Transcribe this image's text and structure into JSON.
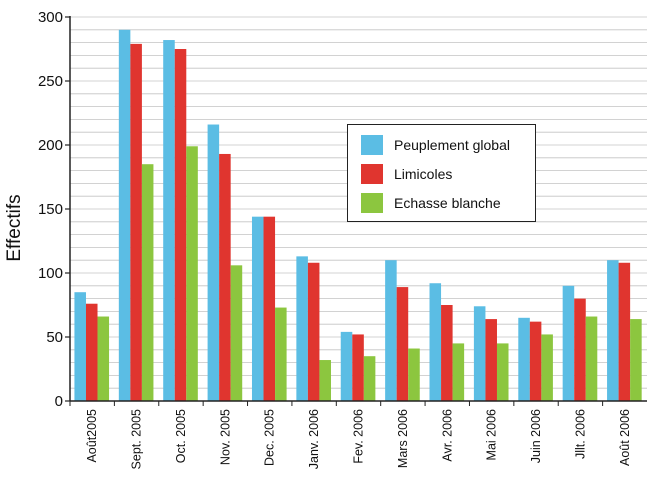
{
  "chart_data": {
    "type": "bar",
    "ylabel": "Effectifs",
    "xlabel": "",
    "ylim": [
      0,
      300
    ],
    "yticks": [
      0,
      50,
      100,
      150,
      200,
      250,
      300
    ],
    "grid": true,
    "legend_position": "center-right",
    "categories": [
      "Août2005",
      "Sept. 2005",
      "Oct. 2005",
      "Nov. 2005",
      "Dec. 2005",
      "Janv. 2006",
      "Fev. 2006",
      "Mars 2006",
      "Avr. 2006",
      "Mai 2006",
      "Juin 2006",
      "Jllt. 2006",
      "Août 2006"
    ],
    "series": [
      {
        "name": "Peuplement global",
        "color": "#5bbde4",
        "values": [
          85,
          290,
          282,
          216,
          144,
          113,
          54,
          110,
          92,
          74,
          65,
          90,
          110
        ]
      },
      {
        "name": "Limicoles",
        "color": "#e0352f",
        "values": [
          76,
          279,
          275,
          193,
          144,
          108,
          52,
          89,
          75,
          64,
          62,
          80,
          108
        ]
      },
      {
        "name": "Echasse blanche",
        "color": "#8cc63f",
        "values": [
          66,
          185,
          199,
          106,
          73,
          32,
          35,
          41,
          45,
          45,
          52,
          66,
          64
        ]
      }
    ]
  }
}
